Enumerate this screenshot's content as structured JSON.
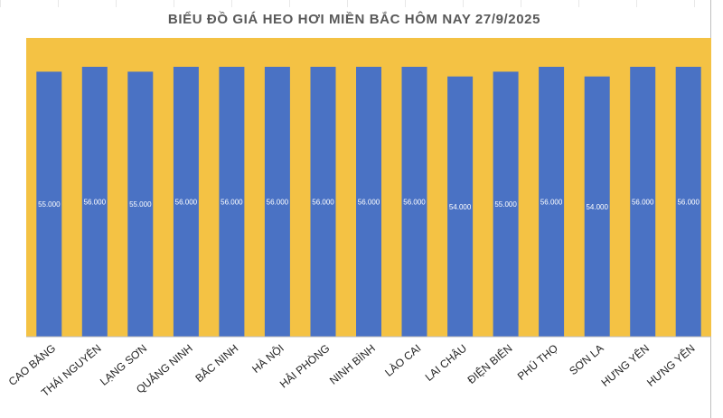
{
  "chart_data": {
    "type": "bar",
    "title": "BIỂU ĐỒ GIÁ HEO HƠI MIỀN BẮC HÔM NAY 27/9/2025",
    "categories": [
      "CAO BẰNG",
      "THÁI NGUYÊN",
      "LẠNG SƠN",
      "QUẢNG NINH",
      "BẮC NINH",
      "HÀ NỘI",
      "HẢI PHÒNG",
      "NINH BÌNH",
      "LÀO CAI",
      "LAI CHÂU",
      "ĐIỆN BIÊN",
      "PHÚ THỌ",
      "SƠN LA",
      "HƯNG YÊN",
      "HƯNG YÊN"
    ],
    "values": [
      55000,
      56000,
      55000,
      56000,
      56000,
      56000,
      56000,
      56000,
      56000,
      54000,
      55000,
      56000,
      54000,
      56000,
      56000
    ],
    "data_labels": [
      "55.000",
      "56.000",
      "55.000",
      "56.000",
      "56.000",
      "56.000",
      "56.000",
      "56.000",
      "56.000",
      "54.000",
      "55.000",
      "56.000",
      "54.000",
      "56.000",
      "56.000"
    ],
    "ylim": [
      0,
      62000
    ],
    "xlabel": "",
    "ylabel": "",
    "grid": false,
    "legend": "none",
    "colors": {
      "bar": "#4a72c4",
      "plot_background": "#f4c244",
      "title": "#595959"
    }
  }
}
